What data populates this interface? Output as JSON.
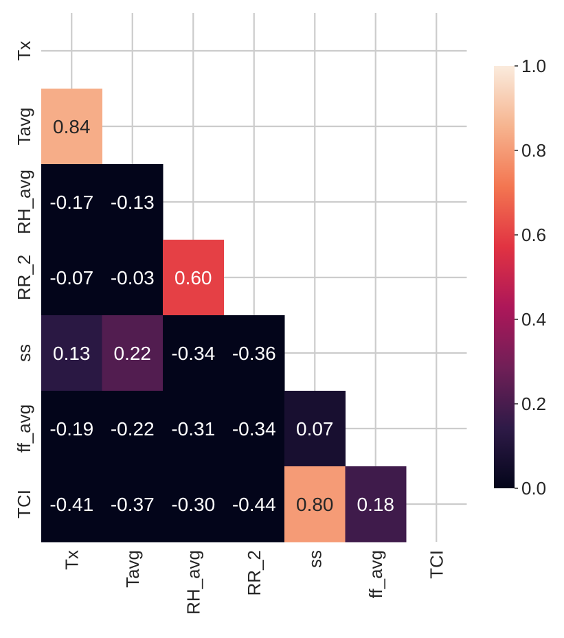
{
  "chart_data": {
    "type": "heatmap",
    "title": "",
    "xlabel": "",
    "ylabel": "",
    "variables": [
      "Tx",
      "Tavg",
      "RH_avg",
      "RR_2",
      "ss",
      "ff_avg",
      "TCI"
    ],
    "mask": "upper-triangle-including-diagonal",
    "rows": [
      {
        "label": "Tx",
        "values": []
      },
      {
        "label": "Tavg",
        "values": [
          0.84
        ]
      },
      {
        "label": "RH_avg",
        "values": [
          -0.17,
          -0.13
        ]
      },
      {
        "label": "RR_2",
        "values": [
          -0.07,
          -0.03,
          0.6
        ]
      },
      {
        "label": "ss",
        "values": [
          0.13,
          0.22,
          -0.34,
          -0.36
        ]
      },
      {
        "label": "ff_avg",
        "values": [
          -0.19,
          -0.22,
          -0.31,
          -0.34,
          0.07
        ]
      },
      {
        "label": "TCI",
        "values": [
          -0.41,
          -0.37,
          -0.3,
          -0.44,
          0.8,
          0.18
        ]
      }
    ],
    "value_labels": [
      [],
      [
        "0.84"
      ],
      [
        "-0.17",
        "-0.13"
      ],
      [
        "-0.07",
        "-0.03",
        "0.60"
      ],
      [
        "0.13",
        "0.22",
        "-0.34",
        "-0.36"
      ],
      [
        "-0.19",
        "-0.22",
        "-0.31",
        "-0.34",
        "0.07"
      ],
      [
        "-0.41",
        "-0.37",
        "-0.30",
        "-0.44",
        "0.80",
        "0.18"
      ]
    ],
    "colorbar": {
      "min": 0.0,
      "max": 1.0,
      "ticks": [
        0.0,
        0.2,
        0.4,
        0.6,
        0.8,
        1.0
      ],
      "tick_labels": [
        "0.0",
        "0.2",
        "0.4",
        "0.6",
        "0.8",
        "1.0"
      ],
      "colormap": "rocket",
      "position": "right"
    },
    "grid": true,
    "colors": {
      "grid": "#cccccc",
      "text_dark": "#262626",
      "text_light": "#ffffff",
      "colormap_stops": [
        "#03051a",
        "#2e1a47",
        "#701f57",
        "#ad1759",
        "#e13342",
        "#f37651",
        "#f6b48f",
        "#faebdd"
      ]
    }
  }
}
